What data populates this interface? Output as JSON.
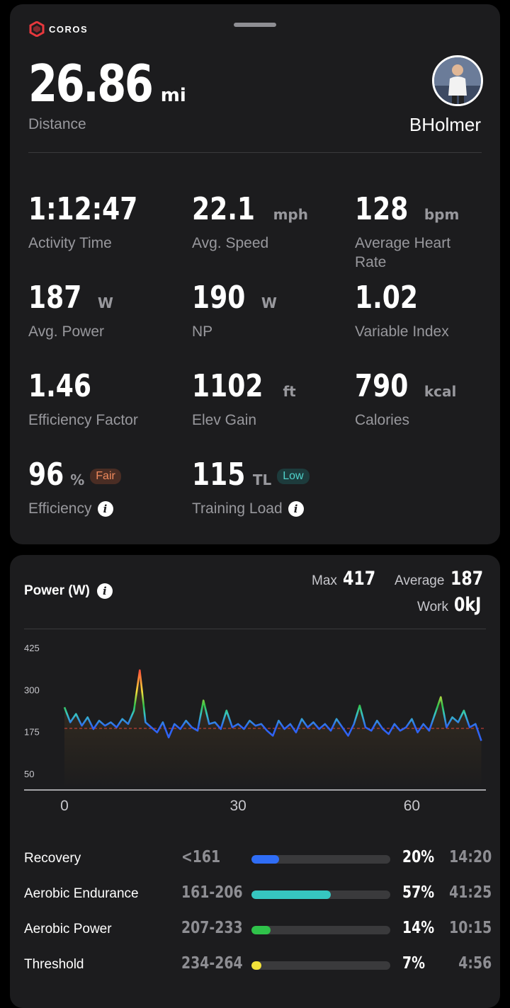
{
  "summary": {
    "brand": "COROS",
    "distance": {
      "value": "26.86",
      "unit": "mi",
      "label": "Distance"
    },
    "username": "BHolmer",
    "metrics": [
      {
        "value": "1:12:47",
        "unit": "",
        "label": "Activity Time"
      },
      {
        "value": "22.1",
        "unit": "mph",
        "label": "Avg. Speed"
      },
      {
        "value": "128",
        "unit": "bpm",
        "label": "Average Heart Rate"
      },
      {
        "value": "187",
        "unit": "W",
        "label": "Avg. Power"
      },
      {
        "value": "190",
        "unit": "W",
        "label": "NP"
      },
      {
        "value": "1.02",
        "unit": "",
        "label": "Variable Index"
      },
      {
        "value": "1.46",
        "unit": "",
        "label": "Efficiency Factor"
      },
      {
        "value": "1102",
        "unit": "ft",
        "label": "Elev Gain"
      },
      {
        "value": "790",
        "unit": "kcal",
        "label": "Calories"
      },
      {
        "value": "96",
        "unit": "%",
        "label": "Efficiency",
        "badge": "Fair"
      },
      {
        "value": "115",
        "unit": "TL",
        "label": "Training Load",
        "badge": "Low"
      }
    ]
  },
  "power": {
    "title": "Power (W)",
    "max_label": "Max",
    "max_value": "417",
    "avg_label": "Average",
    "avg_value": "187",
    "work_label": "Work",
    "work_value": "0kJ"
  },
  "chart_data": {
    "type": "line",
    "y_ticks": [
      "425",
      "300",
      "175",
      "50"
    ],
    "x_ticks": [
      "0",
      "30",
      "60"
    ],
    "ylim": [
      50,
      425
    ],
    "xlim": [
      0,
      72.8
    ],
    "average_line": 187,
    "x": [
      0,
      1,
      2,
      3,
      4,
      5,
      6,
      7,
      8,
      9,
      10,
      11,
      12,
      13,
      14,
      15,
      16,
      17,
      18,
      19,
      20,
      21,
      22,
      23,
      24,
      25,
      26,
      27,
      28,
      29,
      30,
      31,
      32,
      33,
      34,
      35,
      36,
      37,
      38,
      39,
      40,
      41,
      42,
      43,
      44,
      45,
      46,
      47,
      48,
      49,
      50,
      51,
      52,
      53,
      54,
      55,
      56,
      57,
      58,
      59,
      60,
      61,
      62,
      63,
      64,
      65,
      66,
      67,
      68,
      69,
      70,
      71,
      72
    ],
    "values": [
      250,
      205,
      230,
      195,
      220,
      185,
      210,
      195,
      205,
      190,
      215,
      200,
      240,
      360,
      205,
      190,
      175,
      205,
      160,
      200,
      185,
      210,
      190,
      180,
      270,
      200,
      205,
      185,
      240,
      190,
      200,
      185,
      210,
      195,
      200,
      180,
      165,
      210,
      185,
      200,
      175,
      215,
      190,
      205,
      185,
      200,
      180,
      215,
      190,
      165,
      200,
      255,
      190,
      180,
      210,
      185,
      170,
      200,
      180,
      190,
      215,
      175,
      200,
      180,
      230,
      280,
      190,
      220,
      205,
      240,
      190,
      200,
      150
    ]
  },
  "zones": [
    {
      "name": "Recovery",
      "range": "<161",
      "pct": "20%",
      "fraction": 0.2,
      "time": "14:20",
      "color": "#2f6df6"
    },
    {
      "name": "Aerobic Endurance",
      "range": "161-206",
      "pct": "57%",
      "fraction": 0.57,
      "time": "41:25",
      "color": "#36c6c0"
    },
    {
      "name": "Aerobic Power",
      "range": "207-233",
      "pct": "14%",
      "fraction": 0.14,
      "time": "10:15",
      "color": "#2fc24a"
    },
    {
      "name": "Threshold",
      "range": "234-264",
      "pct": "7%",
      "fraction": 0.07,
      "time": "4:56",
      "color": "#f2e23a"
    }
  ]
}
